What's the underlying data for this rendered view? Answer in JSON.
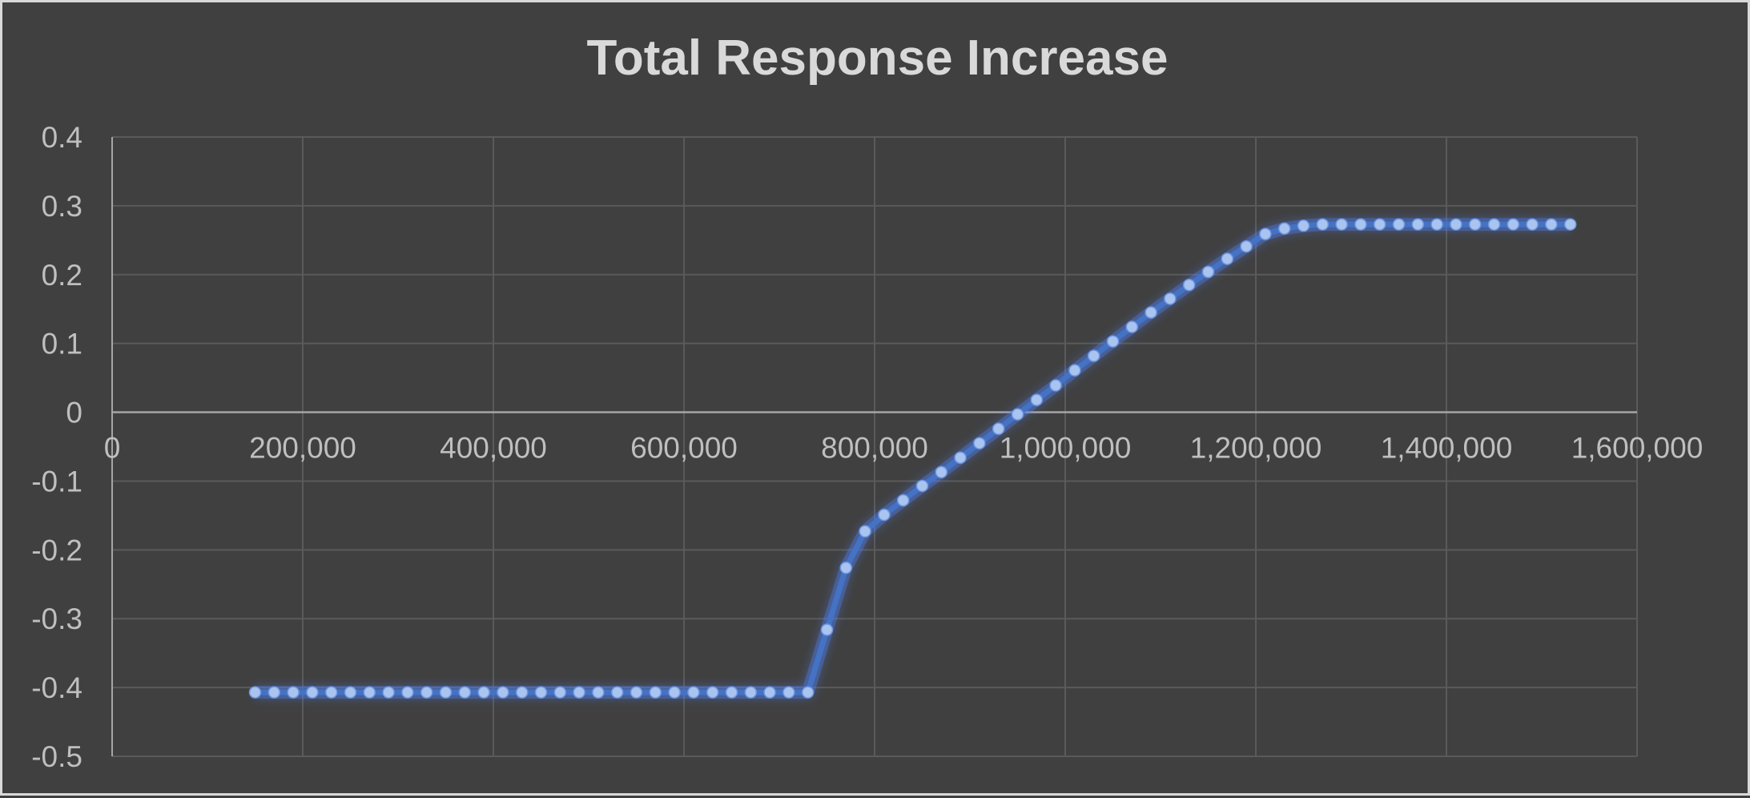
{
  "chart_data": {
    "type": "line",
    "title": "Total Response Increase",
    "xlabel": "",
    "ylabel": "",
    "xlim": [
      0,
      1600000
    ],
    "ylim": [
      -0.5,
      0.4
    ],
    "x_ticks": [
      0,
      200000,
      400000,
      600000,
      800000,
      1000000,
      1200000,
      1400000,
      1600000
    ],
    "x_tick_labels": [
      "0",
      "200,000",
      "400,000",
      "600,000",
      "800,000",
      "1,000,000",
      "1,200,000",
      "1,400,000",
      "1,600,000"
    ],
    "y_ticks": [
      0.4,
      0.3,
      0.2,
      0.1,
      0,
      -0.1,
      -0.2,
      -0.3,
      -0.4,
      -0.5
    ],
    "y_tick_labels": [
      "0.4",
      "0.3",
      "0.2",
      "0.1",
      "0",
      "-0.1",
      "-0.2",
      "-0.3",
      "-0.4",
      "-0.5"
    ],
    "grid": true,
    "legend": "none",
    "colors": {
      "background": "#404040",
      "line": "#4472c4",
      "marker": "#a9c4ef",
      "glow": "#4f7ff0",
      "grid": "#5a5a5a",
      "axis": "#a6a6a6",
      "text": "#d9d9d9"
    },
    "series": [
      {
        "x": [
          150000,
          170000,
          190000,
          210000,
          230000,
          250000,
          270000,
          290000,
          310000,
          330000,
          350000,
          370000,
          390000,
          410000,
          430000,
          450000,
          470000,
          490000,
          510000,
          530000,
          550000,
          570000,
          590000,
          610000,
          630000,
          650000,
          670000,
          690000,
          710000,
          730000,
          750000,
          770000,
          790000,
          810000,
          830000,
          850000,
          870000,
          890000,
          910000,
          930000,
          950000,
          970000,
          990000,
          1010000,
          1030000,
          1050000,
          1070000,
          1090000,
          1110000,
          1130000,
          1150000,
          1170000,
          1190000,
          1210000,
          1230000,
          1250000,
          1270000,
          1290000,
          1310000,
          1330000,
          1350000,
          1370000,
          1390000,
          1410000,
          1430000,
          1450000,
          1470000,
          1490000,
          1510000,
          1530000
        ],
        "values": [
          -0.407,
          -0.407,
          -0.407,
          -0.407,
          -0.407,
          -0.407,
          -0.407,
          -0.407,
          -0.407,
          -0.407,
          -0.407,
          -0.407,
          -0.407,
          -0.407,
          -0.407,
          -0.407,
          -0.407,
          -0.407,
          -0.407,
          -0.407,
          -0.407,
          -0.407,
          -0.407,
          -0.407,
          -0.407,
          -0.407,
          -0.407,
          -0.407,
          -0.407,
          -0.407,
          -0.316,
          -0.226,
          -0.173,
          -0.149,
          -0.128,
          -0.107,
          -0.087,
          -0.066,
          -0.045,
          -0.024,
          -0.003,
          0.018,
          0.039,
          0.061,
          0.082,
          0.103,
          0.124,
          0.145,
          0.165,
          0.185,
          0.204,
          0.223,
          0.241,
          0.259,
          0.267,
          0.271,
          0.273,
          0.273,
          0.273,
          0.273,
          0.273,
          0.273,
          0.273,
          0.273,
          0.273,
          0.273,
          0.273,
          0.273,
          0.273,
          0.273
        ]
      }
    ]
  }
}
